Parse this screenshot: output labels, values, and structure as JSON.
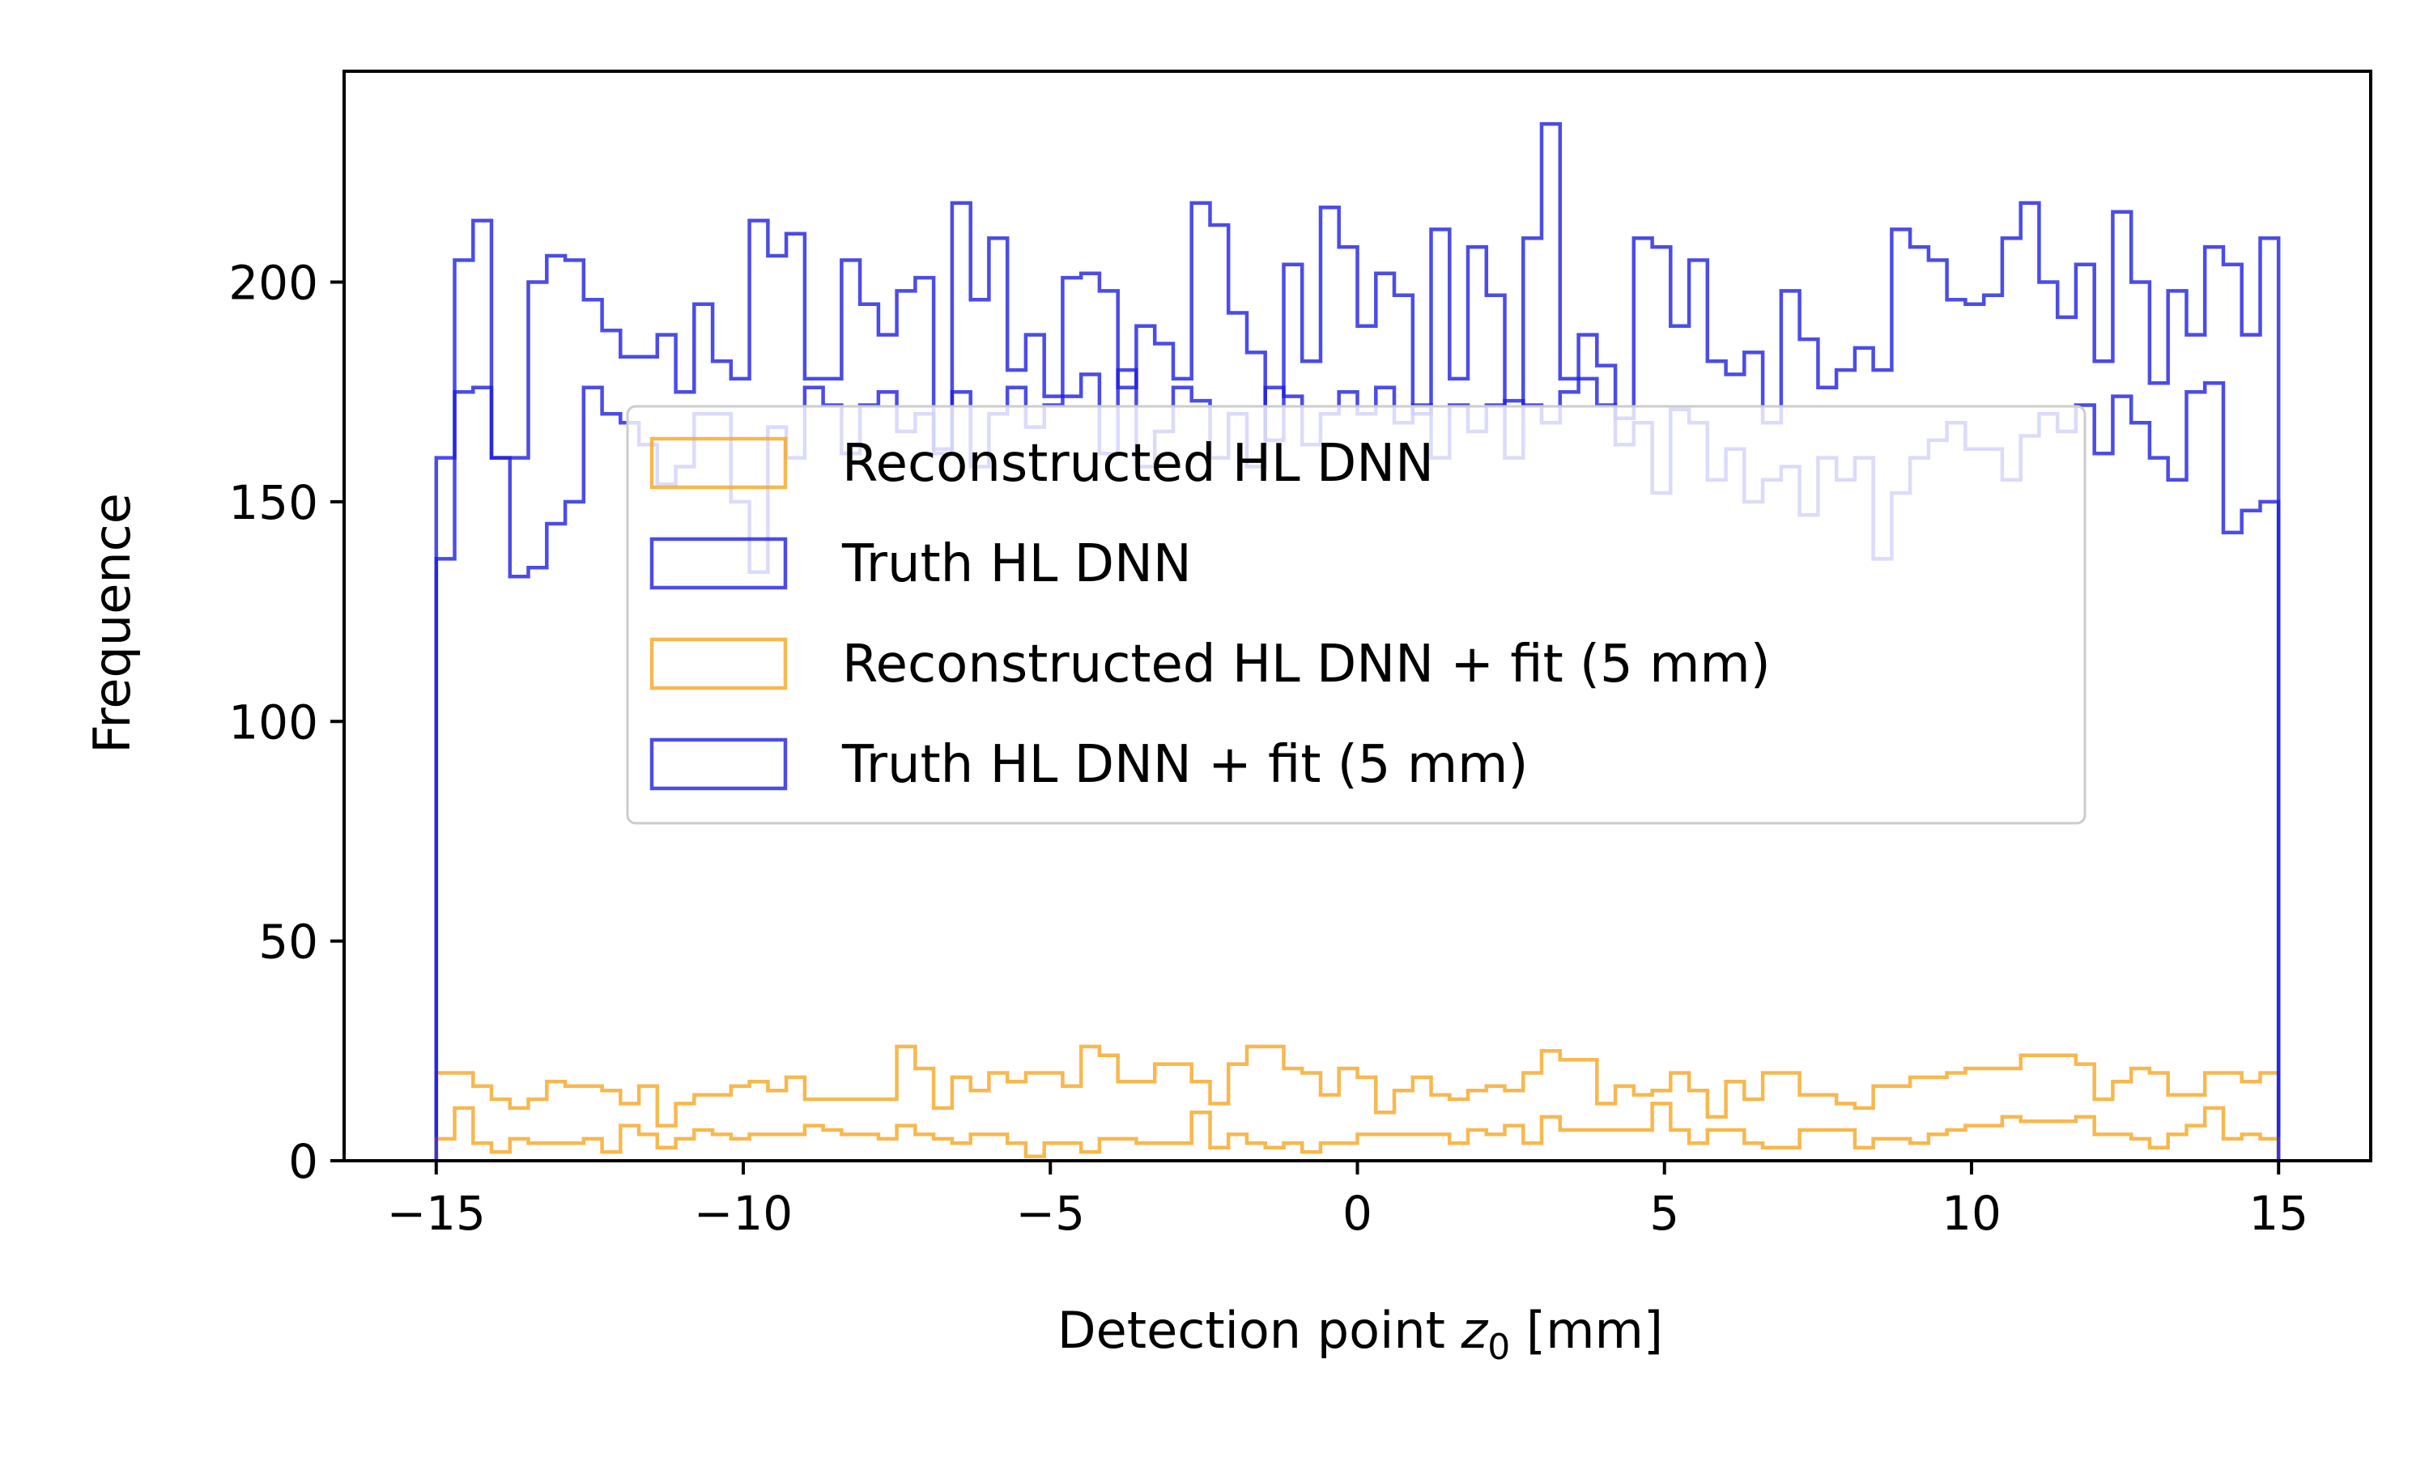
{
  "chart_data": {
    "type": "histogram",
    "title": "",
    "xlabel_main": "Detection point ",
    "xlabel_var": "z",
    "xlabel_sub": "0",
    "xlabel_unit": " [mm]",
    "ylabel": "Frequence",
    "xlim": [
      -16.5,
      16.5
    ],
    "ylim": [
      0,
      248
    ],
    "bin_edges_range": [
      -15,
      15
    ],
    "bin_count": 100,
    "xticks": [
      -15,
      -10,
      -5,
      0,
      5,
      10,
      15
    ],
    "xtick_labels": [
      "−15",
      "−10",
      "−5",
      "0",
      "5",
      "10",
      "15"
    ],
    "yticks": [
      0,
      50,
      100,
      150,
      200
    ],
    "ytick_labels": [
      "0",
      "50",
      "100",
      "150",
      "200"
    ],
    "legend_position": "center",
    "colors": {
      "orange": "#F5A623",
      "blue": "#1F1FE0"
    },
    "series": [
      {
        "name": "Reconstructed HL DNN",
        "color": "#F5A623",
        "values": [
          20,
          20,
          17,
          14,
          12,
          14,
          18,
          17,
          17,
          16,
          13,
          17,
          8,
          13,
          15,
          15,
          17,
          18,
          16,
          19,
          14,
          14,
          14,
          14,
          14,
          26,
          21,
          12,
          19,
          16,
          20,
          18,
          20,
          20,
          17,
          26,
          24,
          18,
          18,
          22,
          22,
          18,
          13,
          22,
          26,
          26,
          21,
          20,
          15,
          21,
          19,
          11,
          16,
          19,
          15,
          14,
          16,
          17,
          16,
          20,
          25,
          23,
          23,
          13,
          17,
          15,
          16,
          20,
          16,
          10,
          18,
          14,
          20,
          20,
          15,
          15,
          13,
          12,
          17,
          17,
          19,
          19,
          20,
          21,
          21,
          21,
          24,
          24,
          24,
          22,
          14,
          18,
          21,
          20,
          15,
          15,
          20,
          20,
          18,
          20
        ]
      },
      {
        "name": "Truth HL DNN",
        "color": "#1F1FE0",
        "values": [
          160,
          205,
          214,
          160,
          160,
          200,
          206,
          205,
          196,
          189,
          183,
          183,
          188,
          175,
          195,
          182,
          178,
          214,
          206,
          211,
          178,
          178,
          205,
          195,
          188,
          198,
          201,
          162,
          218,
          196,
          210,
          180,
          188,
          174,
          201,
          202,
          198,
          176,
          190,
          186,
          178,
          218,
          213,
          193,
          184,
          164,
          204,
          182,
          217,
          208,
          190,
          202,
          197,
          170,
          212,
          178,
          208,
          197,
          160,
          210,
          236,
          178,
          188,
          181,
          169,
          210,
          208,
          190,
          205,
          182,
          179,
          184,
          168,
          198,
          187,
          176,
          180,
          185,
          180,
          212,
          208,
          205,
          196,
          195,
          197,
          210,
          218,
          200,
          192,
          204,
          182,
          216,
          200,
          177,
          198,
          188,
          208,
          204,
          188,
          210
        ]
      },
      {
        "name": "Reconstructed HL DNN + fit (5 mm)",
        "color": "#F5A623",
        "values": [
          5,
          12,
          4,
          2,
          5,
          4,
          4,
          4,
          5,
          2,
          8,
          6,
          3,
          5,
          7,
          6,
          5,
          6,
          6,
          6,
          8,
          7,
          6,
          6,
          5,
          8,
          6,
          5,
          4,
          6,
          6,
          4,
          1,
          4,
          4,
          2,
          5,
          5,
          4,
          4,
          4,
          11,
          3,
          6,
          4,
          3,
          4,
          2,
          4,
          4,
          6,
          6,
          6,
          6,
          6,
          4,
          7,
          6,
          8,
          4,
          10,
          7,
          7,
          7,
          7,
          7,
          13,
          7,
          4,
          7,
          7,
          4,
          3,
          3,
          7,
          7,
          7,
          3,
          5,
          5,
          4,
          6,
          7,
          8,
          8,
          10,
          9,
          9,
          9,
          10,
          6,
          6,
          5,
          3,
          6,
          8,
          12,
          5,
          6,
          5
        ]
      },
      {
        "name": "Truth HL DNN + fit (5 mm)",
        "color": "#1F1FE0",
        "values": [
          137,
          175,
          176,
          160,
          133,
          135,
          145,
          150,
          176,
          170,
          168,
          163,
          154,
          158,
          170,
          170,
          150,
          134,
          167,
          160,
          176,
          172,
          161,
          172,
          175,
          166,
          170,
          161,
          175,
          158,
          170,
          176,
          167,
          172,
          174,
          179,
          161,
          180,
          158,
          166,
          176,
          173,
          160,
          170,
          158,
          176,
          174,
          163,
          170,
          175,
          170,
          176,
          168,
          172,
          160,
          172,
          166,
          172,
          173,
          172,
          168,
          175,
          178,
          172,
          163,
          168,
          152,
          171,
          168,
          155,
          162,
          150,
          155,
          158,
          147,
          160,
          155,
          160,
          137,
          152,
          160,
          164,
          168,
          162,
          162,
          155,
          165,
          170,
          166,
          172,
          161,
          174,
          168,
          160,
          155,
          175,
          177,
          143,
          148,
          150
        ]
      }
    ]
  }
}
